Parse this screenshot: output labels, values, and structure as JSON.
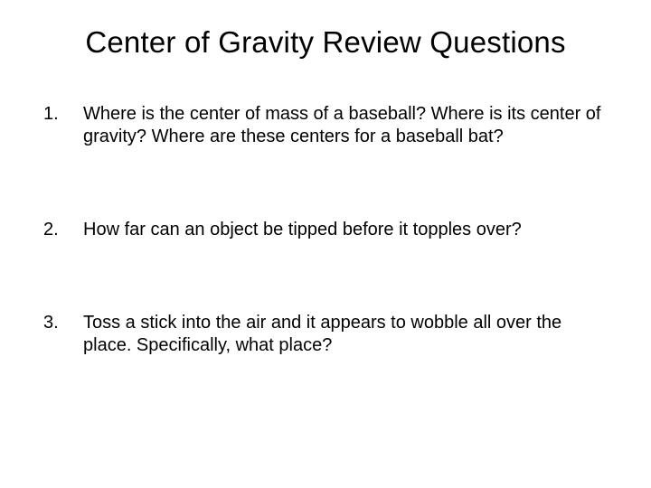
{
  "title": "Center of Gravity Review Questions",
  "questions": [
    {
      "number": "1.",
      "text": "Where is the center of mass of a baseball?  Where is its center of gravity?  Where are these centers for a baseball bat?"
    },
    {
      "number": "2.",
      "text": "How far can an object be tipped before it topples over?"
    },
    {
      "number": "3.",
      "text": "Toss a stick into the air and it appears to wobble all over the place.  Specifically, what place?"
    }
  ],
  "style": {
    "background_color": "#ffffff",
    "text_color": "#000000",
    "title_fontsize": 33,
    "body_fontsize": 20,
    "font_family": "Arial"
  }
}
